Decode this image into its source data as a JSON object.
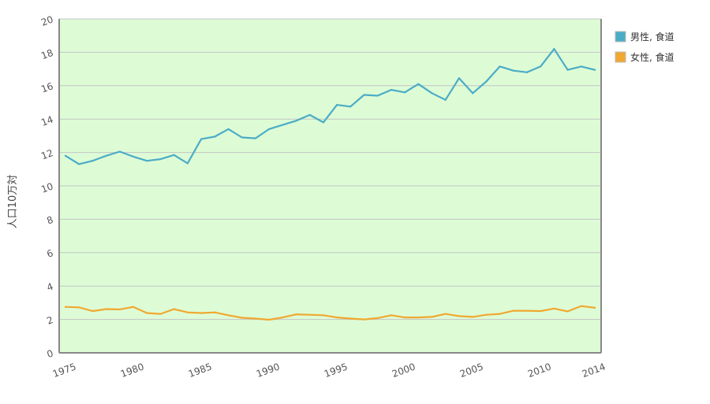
{
  "chart_data": {
    "type": "line",
    "title": "",
    "xlabel": "",
    "ylabel": "人口10万対",
    "xlim": [
      1975,
      2014
    ],
    "ylim": [
      0,
      20
    ],
    "yticks": [
      0,
      2,
      4,
      6,
      8,
      10,
      12,
      14,
      16,
      18,
      20
    ],
    "xtick_labels": [
      "1975",
      "1980",
      "1985",
      "1990",
      "1995",
      "2000",
      "2005",
      "2010",
      "2014"
    ],
    "grid": true,
    "legend_position": "right-top",
    "plot_background": "#ddfcd6",
    "x": [
      1975,
      1976,
      1977,
      1978,
      1979,
      1980,
      1981,
      1982,
      1983,
      1984,
      1985,
      1986,
      1987,
      1988,
      1989,
      1990,
      1991,
      1992,
      1993,
      1994,
      1995,
      1996,
      1997,
      1998,
      1999,
      2000,
      2001,
      2002,
      2003,
      2004,
      2005,
      2006,
      2007,
      2008,
      2009,
      2010,
      2011,
      2012,
      2013,
      2014
    ],
    "series": [
      {
        "name": "男性, 食道",
        "color": "#4bacc6",
        "values": [
          11.8,
          11.3,
          11.5,
          11.8,
          12.05,
          11.75,
          11.5,
          11.6,
          11.85,
          11.35,
          12.8,
          12.95,
          13.4,
          12.9,
          12.85,
          13.4,
          13.65,
          13.9,
          14.25,
          13.8,
          14.85,
          14.75,
          15.45,
          15.4,
          15.75,
          15.6,
          16.1,
          15.55,
          15.15,
          16.45,
          15.55,
          16.25,
          17.15,
          16.9,
          16.8,
          17.15,
          18.2,
          16.95,
          17.15,
          16.95
        ]
      },
      {
        "name": "女性, 食道",
        "color": "#f0a830",
        "values": [
          2.75,
          2.72,
          2.5,
          2.62,
          2.6,
          2.75,
          2.38,
          2.33,
          2.62,
          2.42,
          2.38,
          2.42,
          2.25,
          2.1,
          2.05,
          1.98,
          2.12,
          2.3,
          2.28,
          2.25,
          2.12,
          2.05,
          2.0,
          2.08,
          2.25,
          2.12,
          2.12,
          2.15,
          2.33,
          2.2,
          2.15,
          2.28,
          2.33,
          2.52,
          2.52,
          2.5,
          2.65,
          2.48,
          2.8,
          2.7
        ]
      }
    ]
  }
}
